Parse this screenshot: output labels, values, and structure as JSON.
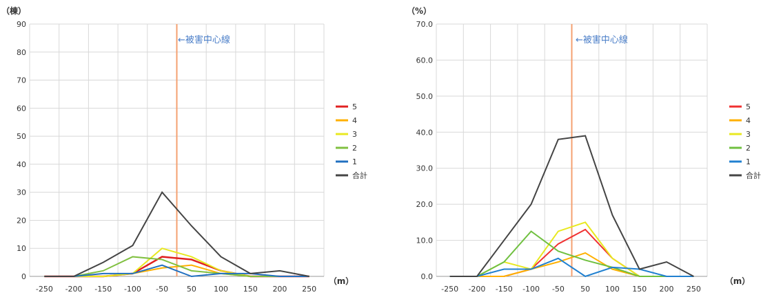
{
  "charts": [
    {
      "type": "line",
      "y_unit": "（棟）",
      "x_unit": "（m）",
      "x": [
        -250,
        -200,
        -150,
        -100,
        -50,
        50,
        100,
        150,
        200,
        250
      ],
      "yticks": [
        "0",
        "10",
        "20",
        "30",
        "40",
        "50",
        "60",
        "70",
        "80",
        "90"
      ],
      "ylim": [
        0,
        90
      ],
      "center_line_label": "←被害中心線",
      "legend": [
        "5",
        "4",
        "3",
        "2",
        "1",
        "合計"
      ],
      "series": [
        {
          "name": "5",
          "color": "#e02020",
          "values": [
            0,
            0,
            0,
            1,
            7,
            6,
            2,
            0,
            0,
            0
          ]
        },
        {
          "name": "4",
          "color": "#ffb000",
          "values": [
            0,
            0,
            0,
            1,
            3,
            4,
            1,
            0,
            0,
            0
          ]
        },
        {
          "name": "3",
          "color": "#e8e820",
          "values": [
            0,
            0,
            0,
            1,
            10,
            7,
            2,
            0,
            0,
            0
          ]
        },
        {
          "name": "2",
          "color": "#80c040",
          "values": [
            0,
            0,
            2,
            7,
            6,
            2,
            1,
            0,
            0,
            0
          ]
        },
        {
          "name": "1",
          "color": "#2070c0",
          "values": [
            0,
            0,
            1,
            1,
            4,
            0,
            1,
            1,
            0,
            0
          ]
        },
        {
          "name": "合計",
          "color": "#444444",
          "values": [
            0,
            0,
            5,
            11,
            30,
            18,
            7,
            1,
            2,
            0
          ]
        }
      ]
    },
    {
      "type": "line",
      "y_unit": "（%）",
      "x_unit": "（m）",
      "x": [
        -250,
        -200,
        -150,
        -100,
        -50,
        50,
        100,
        150,
        200,
        250
      ],
      "yticks": [
        "0.0",
        "10.0",
        "20.0",
        "30.0",
        "40.0",
        "50.0",
        "60.0",
        "70.0"
      ],
      "ylim": [
        0,
        70
      ],
      "center_line_label": "←被害中心線",
      "legend": [
        "5",
        "4",
        "3",
        "2",
        "1",
        "合計"
      ],
      "series": [
        {
          "name": "5",
          "color": "#f03030",
          "values": [
            0,
            0,
            0,
            2,
            9,
            13,
            5,
            0,
            0,
            0
          ]
        },
        {
          "name": "4",
          "color": "#ffb000",
          "values": [
            0,
            0,
            0,
            2,
            4,
            6.5,
            2,
            0,
            0,
            0
          ]
        },
        {
          "name": "3",
          "color": "#e8e820",
          "values": [
            0,
            0,
            4,
            2,
            12.5,
            15,
            5,
            0,
            0,
            0
          ]
        },
        {
          "name": "2",
          "color": "#70c040",
          "values": [
            0,
            0,
            4,
            12.5,
            7,
            4.5,
            2.5,
            0,
            0,
            0
          ]
        },
        {
          "name": "1",
          "color": "#2080d0",
          "values": [
            0,
            0,
            2,
            2,
            5,
            0,
            2.5,
            2,
            0,
            0
          ]
        },
        {
          "name": "合計",
          "color": "#444444",
          "values": [
            0,
            0,
            10,
            20,
            38,
            39,
            17,
            2,
            4,
            0
          ]
        }
      ]
    }
  ]
}
